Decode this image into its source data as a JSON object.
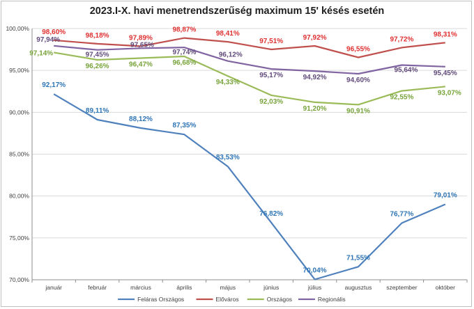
{
  "chart_data": {
    "type": "line",
    "title": "2023.I-X. havi menetrendszerűség maximum 15' késés esetén",
    "categories": [
      "január",
      "február",
      "március",
      "április",
      "május",
      "június",
      "július",
      "augusztus",
      "szeptember",
      "október"
    ],
    "ylim": [
      70,
      100
    ],
    "yticks": [
      70,
      75,
      80,
      85,
      90,
      95,
      100
    ],
    "ytick_labels": [
      "70,00%",
      "75,00%",
      "80,00%",
      "85,00%",
      "90,00%",
      "95,00%",
      "100,00%"
    ],
    "grid": true,
    "legend_position": "bottom",
    "series": [
      {
        "name": "Feláras Országos",
        "color": "#4f81bd",
        "labelColor": "#2e75b6",
        "values": [
          92.17,
          89.11,
          88.12,
          87.35,
          83.53,
          76.82,
          70.04,
          71.55,
          76.77,
          79.01
        ],
        "labels": [
          "92,17%",
          "89,11%",
          "88,12%",
          "87,35%",
          "83,53%",
          "76,82%",
          "70,04%",
          "71,55%",
          "76,77%",
          "79,01%"
        ]
      },
      {
        "name": "Előváros",
        "color": "#c0504d",
        "labelColor": "#e03030",
        "values": [
          98.6,
          98.18,
          97.89,
          98.87,
          98.41,
          97.51,
          97.92,
          96.55,
          97.72,
          98.31
        ],
        "labels": [
          "98,60%",
          "98,18%",
          "97,89%",
          "98,87%",
          "98,41%",
          "97,51%",
          "97,92%",
          "96,55%",
          "97,72%",
          "98,31%"
        ]
      },
      {
        "name": "Országos",
        "color": "#9bbb59",
        "labelColor": "#77a33a",
        "values": [
          97.14,
          96.26,
          96.47,
          96.68,
          94.33,
          92.03,
          91.2,
          90.91,
          92.55,
          93.07
        ],
        "labels": [
          "97,14%",
          "96,26%",
          "96,47%",
          "96,68%",
          "94,33%",
          "92,03%",
          "91,20%",
          "90,91%",
          "92,55%",
          "93,07%"
        ]
      },
      {
        "name": "Regionális",
        "color": "#8064a2",
        "labelColor": "#604a7b",
        "values": [
          97.94,
          97.45,
          97.65,
          97.74,
          96.12,
          95.17,
          94.92,
          94.6,
          95.64,
          95.45
        ],
        "labels": [
          "97,94%",
          "97,45%",
          "97,65%",
          "97,74%",
          "96,12%",
          "95,17%",
          "94,92%",
          "94,60%",
          "95,64%",
          "95,45%"
        ]
      }
    ]
  }
}
